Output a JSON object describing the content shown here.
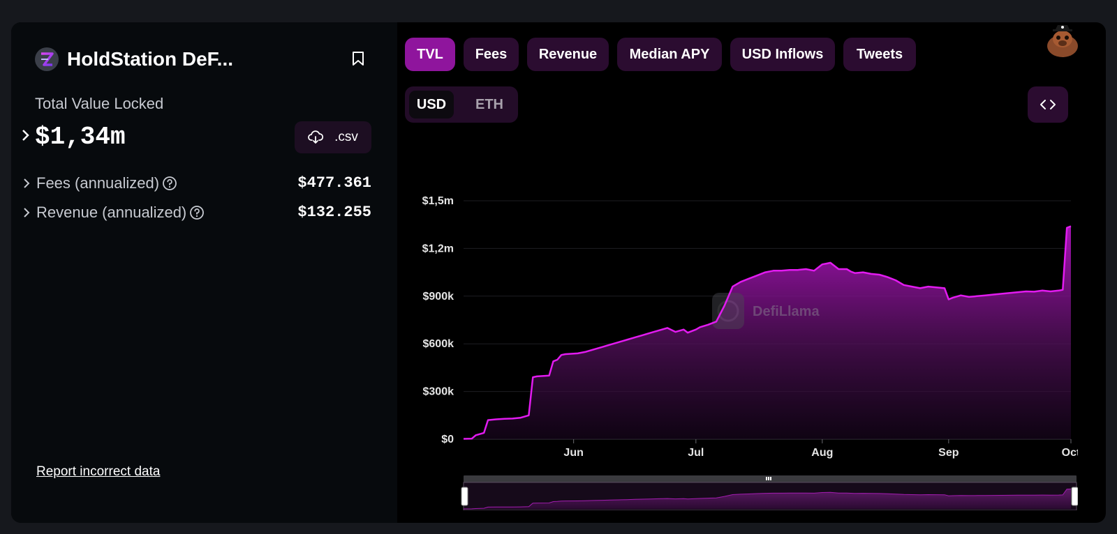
{
  "protocol": {
    "name": "HoldStation DeF...",
    "logo_icon": "holdstation-logo-icon",
    "bookmark_icon": "bookmark-icon"
  },
  "tvl": {
    "label": "Total Value Locked",
    "value": "$1,34m"
  },
  "csv_button": {
    "label": ".csv",
    "icon": "download-cloud-icon"
  },
  "metrics": [
    {
      "label": "Fees (annualized)",
      "value": "$477.361"
    },
    {
      "label": "Revenue (annualized)",
      "value": "$132.255"
    }
  ],
  "report_link": "Report incorrect data",
  "tabs": [
    {
      "label": "TVL",
      "active": true
    },
    {
      "label": "Fees",
      "active": false
    },
    {
      "label": "Revenue",
      "active": false
    },
    {
      "label": "Median APY",
      "active": false
    },
    {
      "label": "USD Inflows",
      "active": false
    },
    {
      "label": "Tweets",
      "active": false
    }
  ],
  "currency_toggle": {
    "options": [
      "USD",
      "ETH"
    ],
    "selected": "USD"
  },
  "embed_icon": "code-brackets-icon",
  "watermark": "DefiLlama",
  "colors": {
    "accent": "#e21bf0",
    "tab_active": "#8f159d",
    "tab_inactive": "#2b0c30"
  },
  "chart_data": {
    "type": "area",
    "series": [
      {
        "x": [
          "2024-05-05",
          "2024-05-07",
          "2024-05-08",
          "2024-05-10",
          "2024-05-11",
          "2024-05-13",
          "2024-05-15",
          "2024-05-17",
          "2024-05-19",
          "2024-05-21",
          "2024-05-22",
          "2024-05-23",
          "2024-05-26",
          "2024-05-27",
          "2024-05-28",
          "2024-05-29",
          "2024-05-30",
          "2024-06-02",
          "2024-06-04",
          "2024-06-06",
          "2024-06-08",
          "2024-06-10",
          "2024-06-12",
          "2024-06-14",
          "2024-06-16",
          "2024-06-18",
          "2024-06-20",
          "2024-06-22",
          "2024-06-24",
          "2024-06-26",
          "2024-06-28",
          "2024-06-29",
          "2024-07-01",
          "2024-07-02",
          "2024-07-04",
          "2024-07-06",
          "2024-07-08",
          "2024-07-10",
          "2024-07-12",
          "2024-07-14",
          "2024-07-16",
          "2024-07-18",
          "2024-07-20",
          "2024-07-22",
          "2024-07-24",
          "2024-07-26",
          "2024-07-28",
          "2024-07-30",
          "2024-08-01",
          "2024-08-02",
          "2024-08-03",
          "2024-08-05",
          "2024-08-07",
          "2024-08-08",
          "2024-08-09",
          "2024-08-11",
          "2024-08-13",
          "2024-08-15",
          "2024-08-17",
          "2024-08-19",
          "2024-08-21",
          "2024-08-23",
          "2024-08-25",
          "2024-08-27",
          "2024-08-29",
          "2024-08-31",
          "2024-09-01",
          "2024-09-02",
          "2024-09-04",
          "2024-09-06",
          "2024-09-08",
          "2024-09-10",
          "2024-09-12",
          "2024-09-14",
          "2024-09-16",
          "2024-09-18",
          "2024-09-20",
          "2024-09-22",
          "2024-09-24",
          "2024-09-26",
          "2024-09-28",
          "2024-09-29",
          "2024-09-30",
          "2024-10-01"
        ],
        "y": [
          2000,
          3000,
          25000,
          40000,
          120000,
          125000,
          128000,
          130000,
          135000,
          150000,
          390000,
          395000,
          400000,
          490000,
          500000,
          530000,
          535000,
          540000,
          550000,
          565000,
          580000,
          595000,
          610000,
          625000,
          640000,
          655000,
          670000,
          685000,
          700000,
          675000,
          690000,
          670000,
          690000,
          705000,
          720000,
          740000,
          840000,
          960000,
          990000,
          1010000,
          1030000,
          1050000,
          1060000,
          1060000,
          1065000,
          1065000,
          1070000,
          1060000,
          1100000,
          1105000,
          1110000,
          1070000,
          1070000,
          1055000,
          1045000,
          1050000,
          1040000,
          1035000,
          1020000,
          1000000,
          970000,
          960000,
          950000,
          960000,
          955000,
          950000,
          880000,
          890000,
          905000,
          895000,
          900000,
          905000,
          910000,
          915000,
          920000,
          925000,
          930000,
          928000,
          935000,
          930000,
          935000,
          940000,
          1330000,
          1340000
        ]
      }
    ],
    "x_ticks": [
      "Jun",
      "Jul",
      "Aug",
      "Sep",
      "Oct"
    ],
    "x_tick_dates": [
      "2024-06-01",
      "2024-07-01",
      "2024-08-01",
      "2024-09-01",
      "2024-10-01"
    ],
    "y_ticks": [
      "$0",
      "$300k",
      "$600k",
      "$900k",
      "$1,2m",
      "$1,5m"
    ],
    "y_tick_values": [
      0,
      300000,
      600000,
      900000,
      1200000,
      1500000
    ],
    "ylim": [
      0,
      1500000
    ],
    "xlim": [
      "2024-05-05",
      "2024-10-01"
    ],
    "grid": true,
    "legend": "none"
  }
}
